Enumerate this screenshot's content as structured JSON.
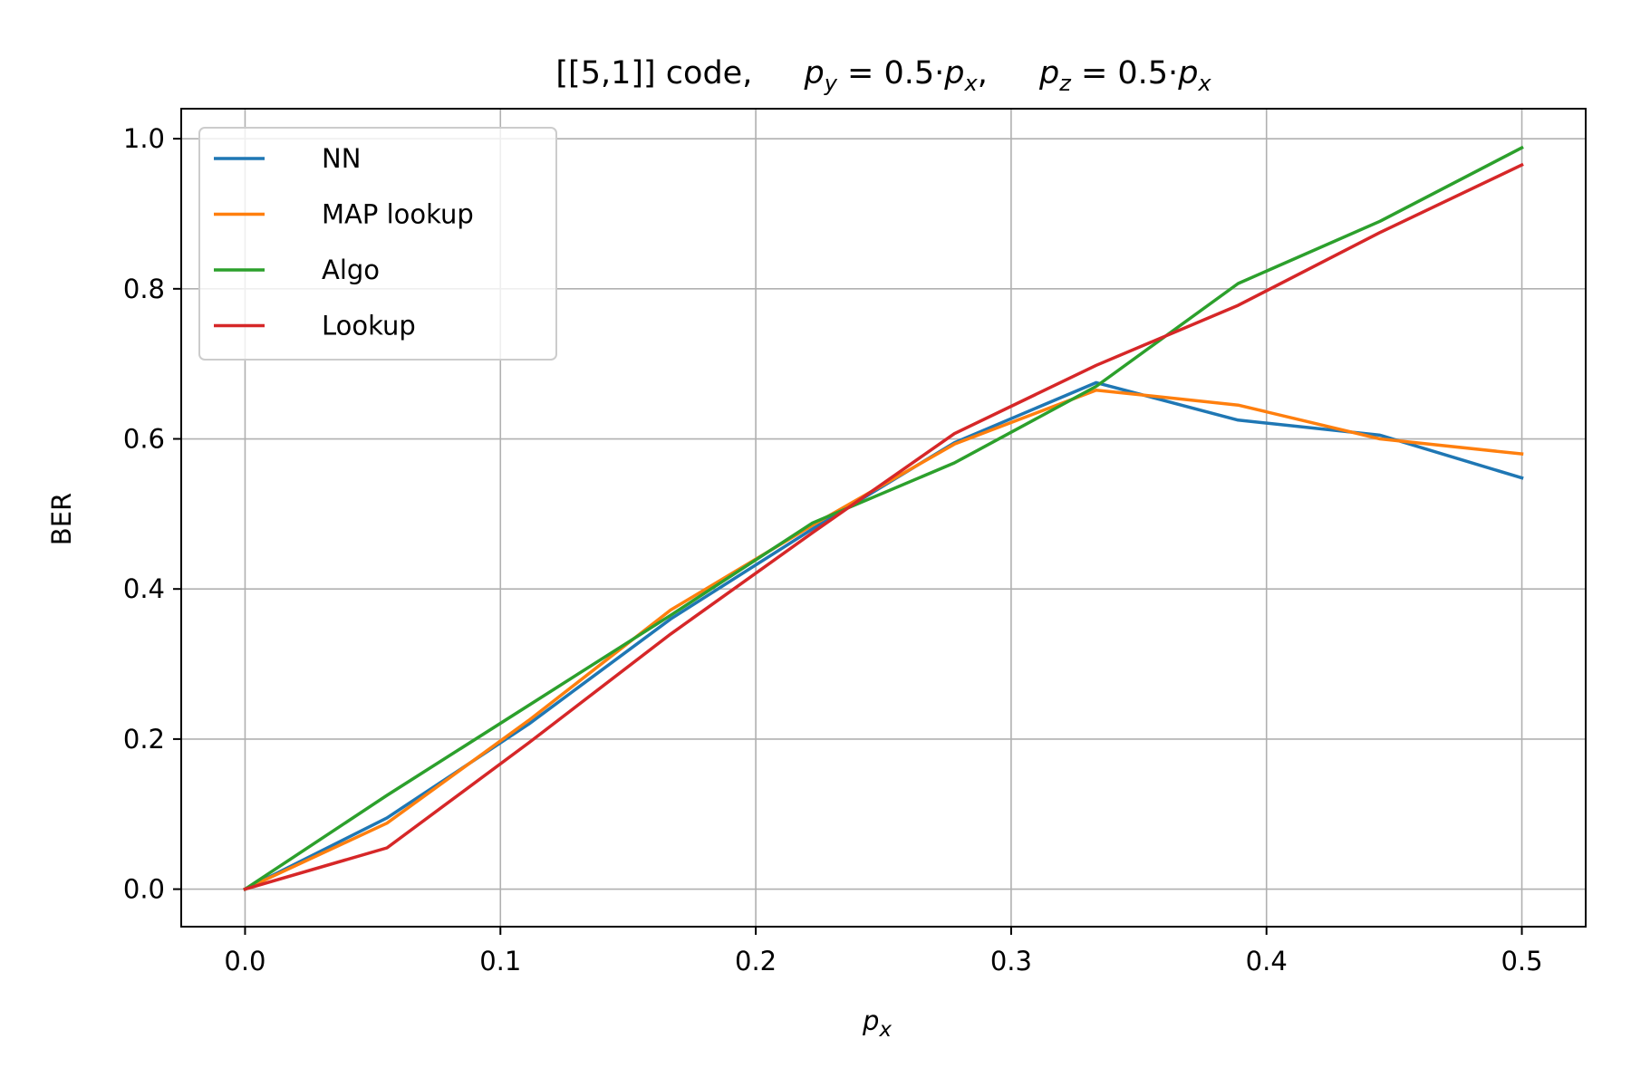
{
  "chart_data": {
    "type": "line",
    "title": "[[5,1]] code,    p_y = 0.5·p_x,    p_z = 0.5·p_x",
    "title_parts": {
      "lead": "[[5,1]] code,",
      "py_sym": "p",
      "py_sub": "y",
      "py_rest": " = 0.5·",
      "px_sym": "p",
      "px_sub": "x",
      "sep": ",",
      "pz_sym": "p",
      "pz_sub": "z",
      "pz_rest": " = 0.5·",
      "px2_sym": "p",
      "px2_sub": "x"
    },
    "xlabel": "p_x",
    "xlabel_parts": {
      "sym": "p",
      "sub": "x"
    },
    "ylabel": "BER",
    "xlim": [
      -0.025,
      0.525
    ],
    "ylim": [
      -0.05,
      1.04
    ],
    "xticks": [
      0.0,
      0.1,
      0.2,
      0.3,
      0.4,
      0.5
    ],
    "xtick_labels": [
      "0.0",
      "0.1",
      "0.2",
      "0.3",
      "0.4",
      "0.5"
    ],
    "yticks": [
      0.0,
      0.2,
      0.4,
      0.6,
      0.8,
      1.0
    ],
    "ytick_labels": [
      "0.0",
      "0.2",
      "0.4",
      "0.6",
      "0.8",
      "1.0"
    ],
    "grid": true,
    "legend_position": "top-left",
    "x": [
      0.0,
      0.0556,
      0.1111,
      0.1667,
      0.2222,
      0.2778,
      0.3333,
      0.3889,
      0.4444,
      0.5
    ],
    "series": [
      {
        "name": "NN",
        "color": "#1f77b4",
        "values": [
          0.0,
          0.095,
          0.22,
          0.36,
          0.48,
          0.595,
          0.675,
          0.625,
          0.605,
          0.548
        ]
      },
      {
        "name": "MAP lookup",
        "color": "#ff7f0e",
        "values": [
          0.0,
          0.088,
          0.225,
          0.372,
          0.485,
          0.593,
          0.665,
          0.645,
          0.6,
          0.58
        ]
      },
      {
        "name": "Algo",
        "color": "#2ca02c",
        "values": [
          0.0,
          0.125,
          0.245,
          0.365,
          0.488,
          0.568,
          0.67,
          0.807,
          0.89,
          0.988
        ]
      },
      {
        "name": "Lookup",
        "color": "#d62728",
        "values": [
          0.0,
          0.055,
          0.195,
          0.34,
          0.475,
          0.607,
          0.698,
          0.778,
          0.875,
          0.965
        ]
      }
    ]
  }
}
